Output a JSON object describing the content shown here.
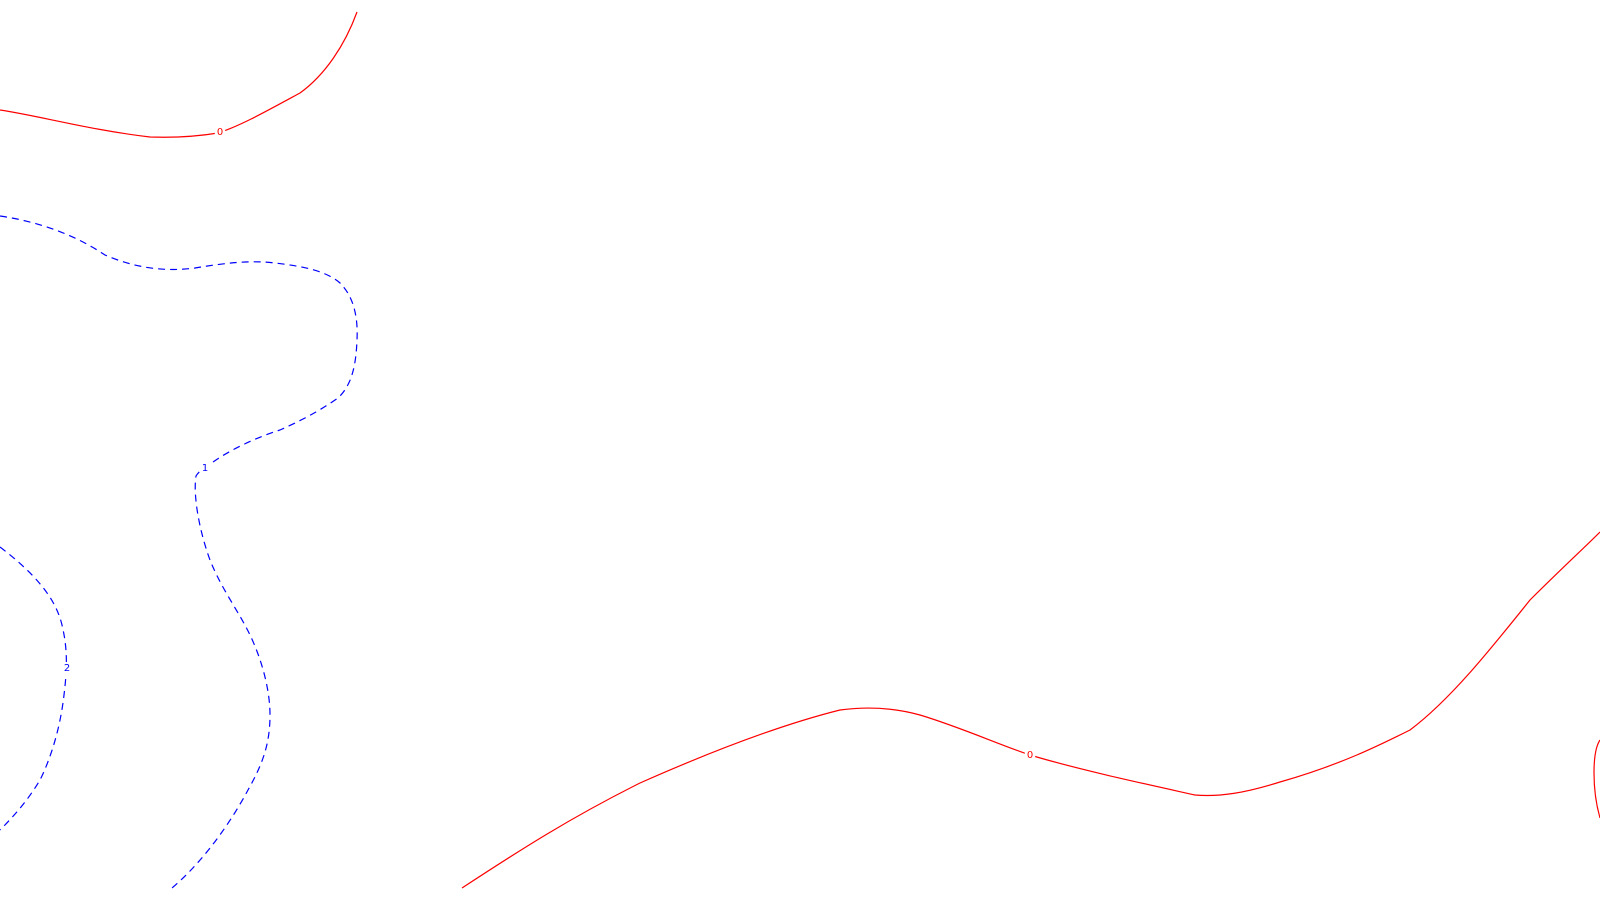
{
  "colors": {
    "background": "#ffffff",
    "level_0": "#ff0000",
    "level_1": "#0000ff",
    "level_2": "#0000ff"
  },
  "contours": [
    {
      "id": "top-left",
      "level": "0",
      "label": "0",
      "style": "solid",
      "color": "#ff0000"
    },
    {
      "id": "bottom",
      "level": "0",
      "label": "0",
      "style": "solid",
      "color": "#ff0000"
    },
    {
      "id": "right-edge",
      "level": "0",
      "label": "",
      "style": "solid",
      "color": "#ff0000"
    },
    {
      "id": "level-1",
      "level": "1",
      "label": "1",
      "style": "dashed",
      "color": "#0000ff"
    },
    {
      "id": "level-2",
      "level": "2",
      "label": "2",
      "style": "dashed",
      "color": "#0000ff"
    }
  ]
}
